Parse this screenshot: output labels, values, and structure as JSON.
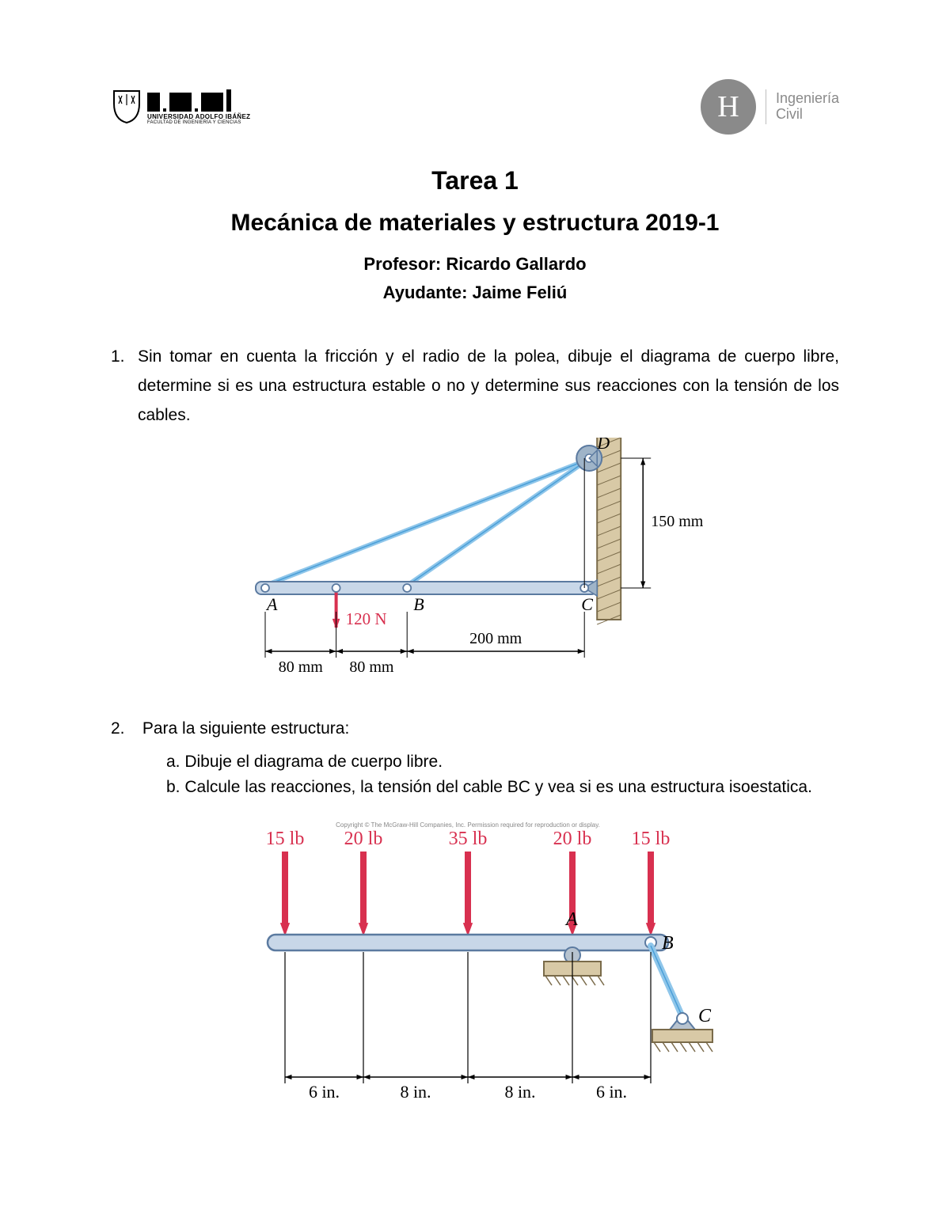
{
  "header": {
    "uai_line1": "UNIVERSIDAD ADOLFO IBÁÑEZ",
    "uai_line2": "FACULTAD DE INGENIERÍA Y CIENCIAS",
    "civil_line1": "Ingeniería",
    "civil_line2": "Civil"
  },
  "titles": {
    "t1": "Tarea 1",
    "t2": "Mecánica de materiales y estructura 2019-1",
    "prof": "Profesor: Ricardo Gallardo",
    "ayud": "Ayudante: Jaime Feliú"
  },
  "p1": {
    "num": "1.",
    "text": "Sin tomar en cuenta la fricción y el radio de la polea, dibuje el diagrama de cuerpo libre, determine si es una estructura estable o no y determine sus reacciones con la tensión de los cables."
  },
  "p2": {
    "num": "2.",
    "intro": "Para la siguiente estructura:",
    "a": "a.  Dibuje el diagrama de cuerpo libre.",
    "b": "b.  Calcule las reacciones, la tensión del cable BC y vea si es una estructura isoestatica."
  },
  "fig1": {
    "labels": {
      "A": "A",
      "B": "B",
      "C": "C",
      "D": "D"
    },
    "force": "120 N",
    "dims": {
      "d80a": "80 mm",
      "d80b": "80 mm",
      "d200": "200 mm",
      "d150": "150 mm"
    },
    "colors": {
      "beam_fill": "#c8d7e8",
      "beam_stroke": "#5b7aa0",
      "cable": "#8fc6ea",
      "cable_stroke": "#4a9fd8",
      "wall_fill": "#d8c9a6",
      "wall_stroke": "#7a6b4a",
      "force": "#d8304f",
      "text": "#000",
      "pulley": "#9fb4c8"
    },
    "geom": {
      "seg1": 80,
      "seg2": 80,
      "seg3": 200,
      "height": 150
    }
  },
  "fig2": {
    "loads": [
      "15 lb",
      "20 lb",
      "35 lb",
      "20 lb",
      "15 lb"
    ],
    "labels": {
      "A": "A",
      "B": "B",
      "C": "C"
    },
    "dims": [
      "6 in.",
      "8 in.",
      "8 in.",
      "6 in."
    ],
    "copyright": "Copyright © The McGraw-Hill Companies, Inc. Permission required for reproduction or display.",
    "colors": {
      "beam_fill": "#c8d7e8",
      "beam_stroke": "#5b7aa0",
      "force": "#d8304f",
      "text": "#000",
      "support_fill": "#d8c9a6",
      "support_stroke": "#7a6b4a",
      "link": "#8fc6ea",
      "link_stroke": "#4a9fd8"
    }
  }
}
